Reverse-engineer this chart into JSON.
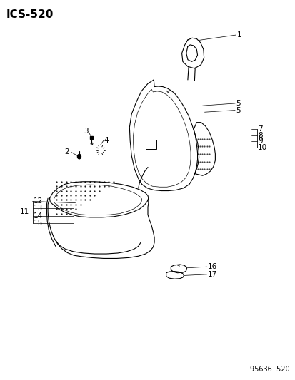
{
  "title": "ICS-520",
  "footer": "95636  520",
  "bg_color": "#ffffff",
  "line_color": "#000000",
  "title_fontsize": 11,
  "label_fontsize": 7.5,
  "footer_fontsize": 7
}
